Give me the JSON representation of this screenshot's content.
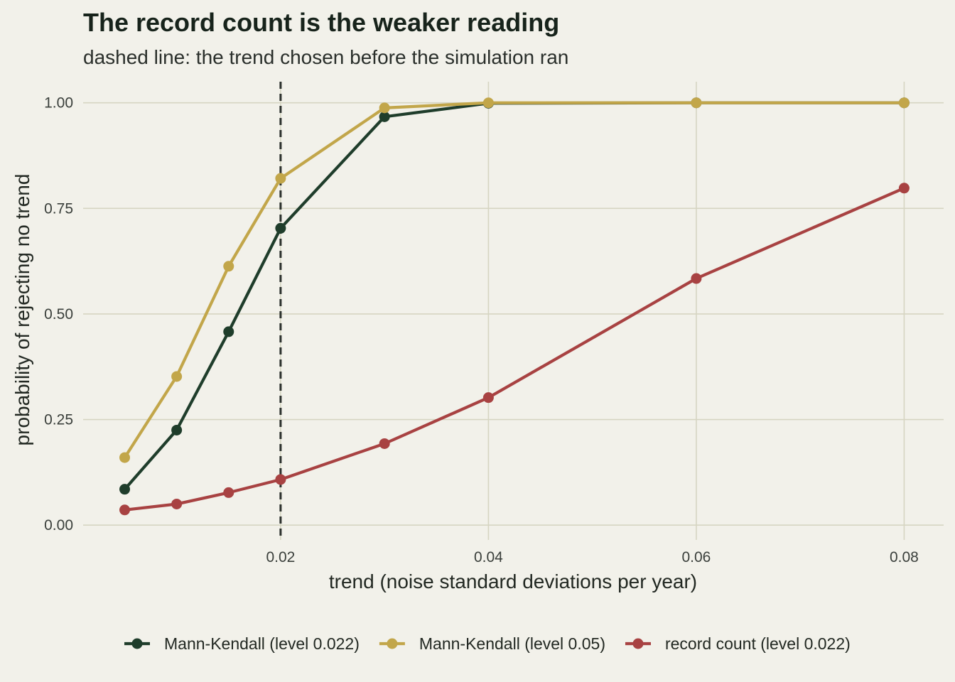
{
  "chart_data": {
    "type": "line",
    "title": "The record count is the weaker reading",
    "subtitle": "dashed line: the trend chosen before the simulation ran",
    "xlabel": "trend (noise standard deviations per year)",
    "ylabel": "probability of rejecting no trend",
    "xlim": [
      0.001,
      0.0838
    ],
    "ylim": [
      -0.035,
      1.05
    ],
    "x_ticks": [
      0.02,
      0.04,
      0.06,
      0.08
    ],
    "x_tick_labels": [
      "0.02",
      "0.04",
      "0.06",
      "0.08"
    ],
    "y_ticks": [
      0,
      0.25,
      0.5,
      0.75,
      1
    ],
    "y_tick_labels": [
      "0.00",
      "0.25",
      "0.50",
      "0.75",
      "1.00"
    ],
    "reference_line": {
      "x": 0.02,
      "style": "dashed",
      "color": "#2b302c"
    },
    "legend_position": "bottom",
    "grid": true,
    "x": [
      0.005,
      0.01,
      0.015,
      0.02,
      0.03,
      0.04,
      0.06,
      0.08
    ],
    "series": [
      {
        "name": "Mann-Kendall (level 0.022)",
        "color": "#1f3d2b",
        "values": [
          0.085,
          0.225,
          0.458,
          0.703,
          0.967,
          0.999,
          1.0,
          1.0
        ]
      },
      {
        "name": "Mann-Kendall (level 0.05)",
        "color": "#c2a64a",
        "values": [
          0.16,
          0.352,
          0.613,
          0.821,
          0.988,
          1.0,
          1.0,
          1.0
        ]
      },
      {
        "name": "record count (level 0.022)",
        "color": "#a84242",
        "values": [
          0.036,
          0.05,
          0.077,
          0.108,
          0.193,
          0.302,
          0.584,
          0.798
        ]
      }
    ]
  }
}
